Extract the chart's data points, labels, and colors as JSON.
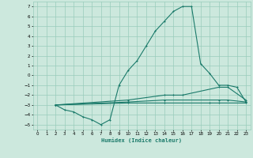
{
  "bg_color": "#cce8dd",
  "grid_color": "#99ccbb",
  "line_color": "#1a7a6a",
  "xlabel": "Humidex (Indice chaleur)",
  "xlim": [
    -0.5,
    23.5
  ],
  "ylim": [
    -5.5,
    7.5
  ],
  "xticks": [
    0,
    1,
    2,
    3,
    4,
    5,
    6,
    7,
    8,
    9,
    10,
    11,
    12,
    13,
    14,
    15,
    16,
    17,
    18,
    19,
    20,
    21,
    22,
    23
  ],
  "yticks": [
    -5,
    -4,
    -3,
    -2,
    -1,
    0,
    1,
    2,
    3,
    4,
    5,
    6,
    7
  ],
  "line1_x": [
    2,
    3,
    4,
    5,
    6,
    7,
    8,
    9,
    10,
    11,
    12,
    13,
    14,
    15,
    16,
    17,
    18,
    19,
    20,
    21,
    22,
    23
  ],
  "line1_y": [
    -3,
    -3.5,
    -3.7,
    -4.2,
    -4.5,
    -5.0,
    -4.5,
    -1.0,
    0.5,
    1.5,
    3.0,
    4.5,
    5.5,
    6.5,
    7.0,
    7.0,
    1.2,
    0.2,
    -1.0,
    -1.0,
    -1.2,
    -2.7
  ],
  "line2_x": [
    2,
    10,
    14,
    15,
    16,
    20,
    21,
    23
  ],
  "line2_y": [
    -3,
    -2.5,
    -2.0,
    -2.0,
    -2.0,
    -1.2,
    -1.2,
    -2.5
  ],
  "line3_x": [
    2,
    10,
    14,
    20,
    21,
    23
  ],
  "line3_y": [
    -3,
    -2.7,
    -2.5,
    -2.5,
    -2.5,
    -2.7
  ],
  "line4_x": [
    2,
    10,
    14,
    19,
    20,
    23
  ],
  "line4_y": [
    -3,
    -2.8,
    -2.8,
    -2.8,
    -2.8,
    -2.8
  ]
}
